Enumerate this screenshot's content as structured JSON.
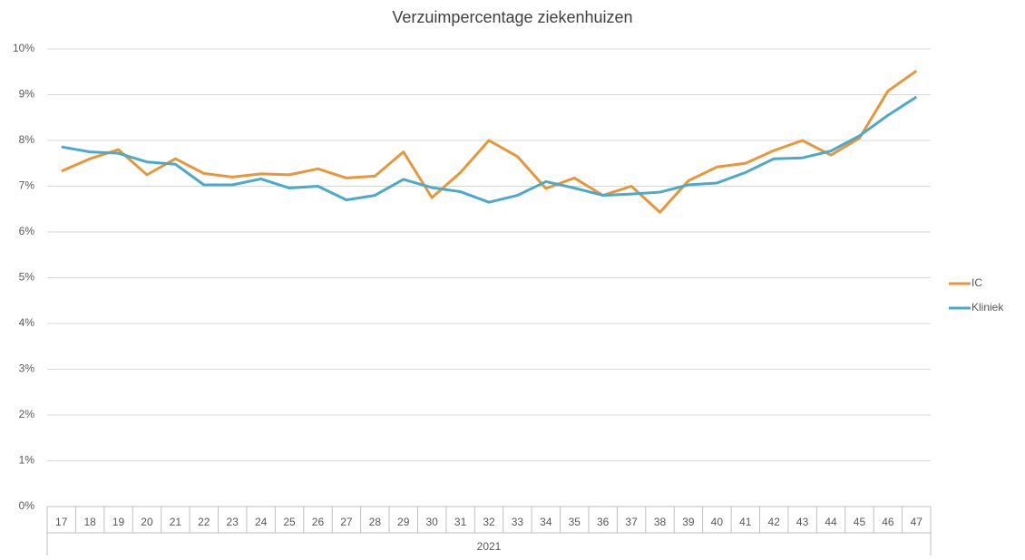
{
  "chart_data": {
    "type": "line",
    "title": "Verzuimpercentage ziekenhuizen",
    "categories": [
      "17",
      "18",
      "19",
      "20",
      "21",
      "22",
      "23",
      "24",
      "25",
      "26",
      "27",
      "28",
      "29",
      "30",
      "31",
      "32",
      "33",
      "34",
      "35",
      "36",
      "37",
      "38",
      "39",
      "40",
      "41",
      "42",
      "43",
      "44",
      "45",
      "46",
      "47"
    ],
    "x_group_label": "2021",
    "series": [
      {
        "name": "IC",
        "color": "#e8963a",
        "values": [
          7.33,
          7.6,
          7.8,
          7.25,
          7.6,
          7.28,
          7.2,
          7.27,
          7.25,
          7.38,
          7.18,
          7.22,
          7.75,
          6.75,
          7.3,
          8.0,
          7.65,
          6.95,
          7.18,
          6.8,
          7.0,
          6.43,
          7.12,
          7.42,
          7.5,
          7.78,
          8.0,
          7.68,
          8.05,
          9.08,
          9.52
        ]
      },
      {
        "name": "Kliniek",
        "color": "#4baac6",
        "values": [
          7.86,
          7.75,
          7.72,
          7.53,
          7.48,
          7.03,
          7.03,
          7.16,
          6.96,
          7.0,
          6.7,
          6.8,
          7.15,
          6.97,
          6.88,
          6.65,
          6.8,
          7.1,
          6.96,
          6.8,
          6.83,
          6.87,
          7.03,
          7.07,
          7.3,
          7.6,
          7.62,
          7.77,
          8.1,
          8.55,
          8.95
        ]
      }
    ],
    "ylim": [
      0,
      10
    ],
    "yticks": [
      {
        "value": 0,
        "label": "0%"
      },
      {
        "value": 1,
        "label": "1%"
      },
      {
        "value": 2,
        "label": "2%"
      },
      {
        "value": 3,
        "label": "3%"
      },
      {
        "value": 4,
        "label": "4%"
      },
      {
        "value": 5,
        "label": "5%"
      },
      {
        "value": 6,
        "label": "6%"
      },
      {
        "value": 7,
        "label": "7%"
      },
      {
        "value": 8,
        "label": "8%"
      },
      {
        "value": 9,
        "label": "9%"
      },
      {
        "value": 10,
        "label": "10%"
      }
    ],
    "grid": true,
    "legend": "right"
  }
}
